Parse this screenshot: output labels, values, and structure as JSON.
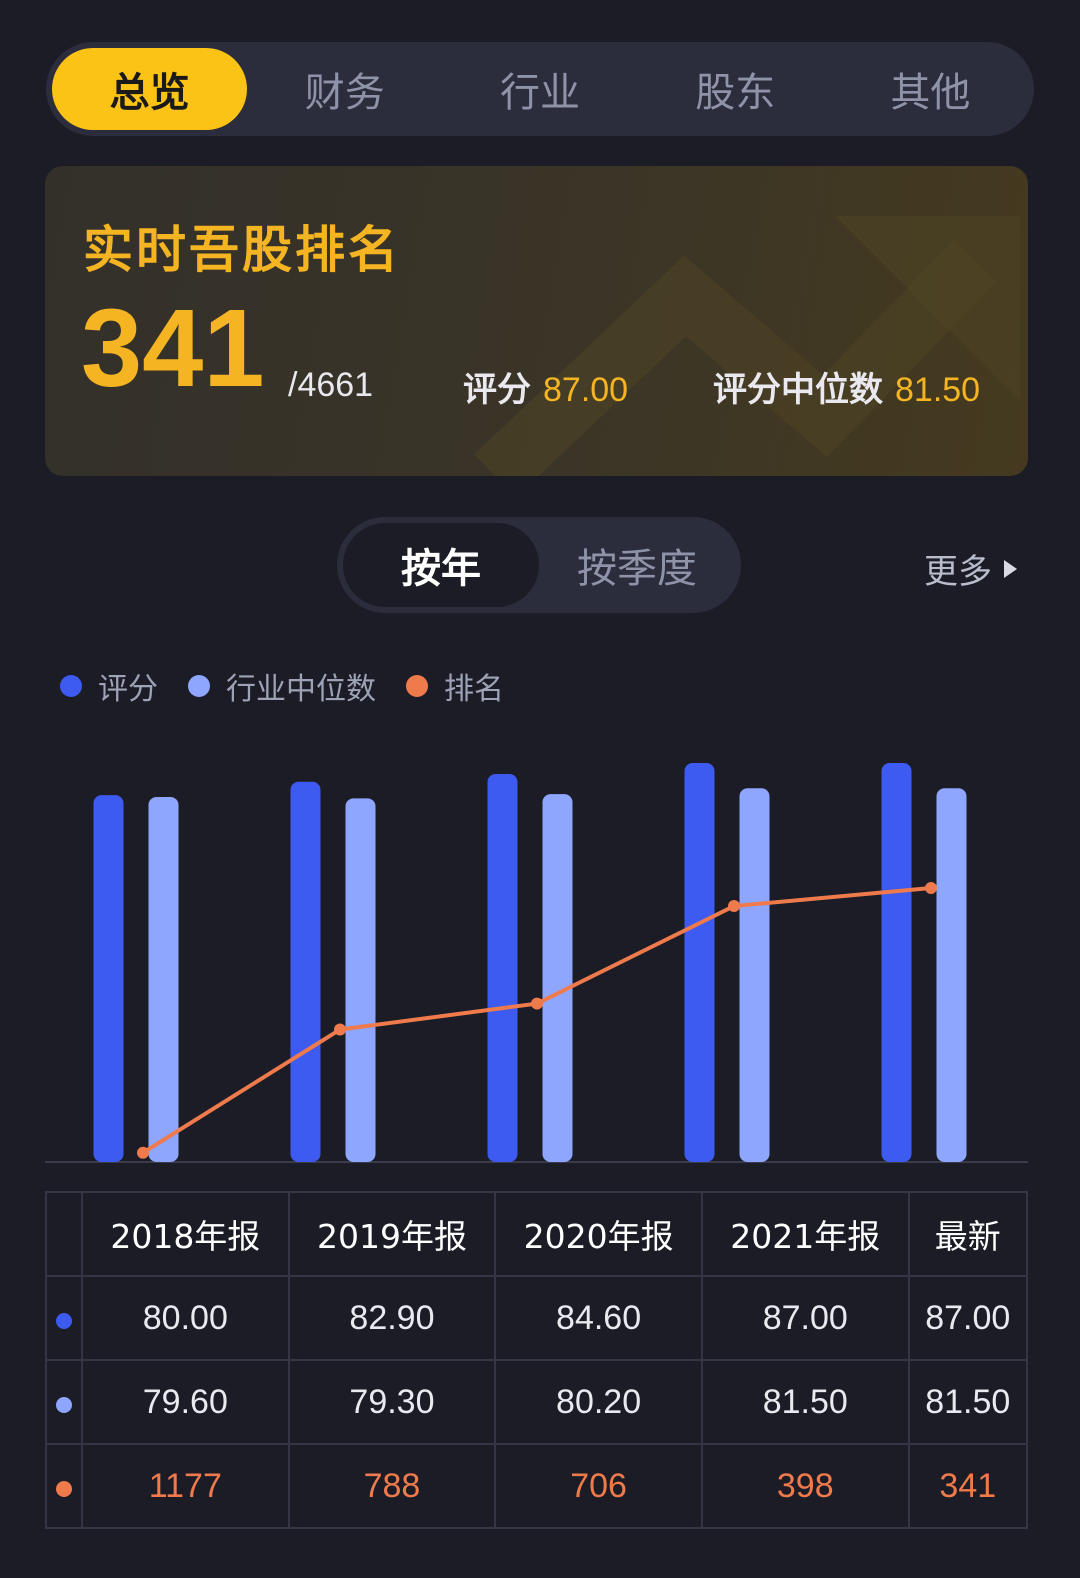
{
  "tabs": [
    {
      "label": "总览",
      "active": true
    },
    {
      "label": "财务",
      "active": false
    },
    {
      "label": "行业",
      "active": false
    },
    {
      "label": "股东",
      "active": false
    },
    {
      "label": "其他",
      "active": false
    }
  ],
  "rank_card": {
    "title": "实时吾股排名",
    "rank": "341",
    "total": "/4661",
    "score_label": "评分",
    "score_value": "87.00",
    "median_label": "评分中位数",
    "median_value": "81.50"
  },
  "period": {
    "options": [
      {
        "label": "按年",
        "active": true
      },
      {
        "label": "按季度",
        "active": false
      }
    ],
    "more_label": "更多"
  },
  "legend": [
    {
      "label": "评分",
      "color": "#3d5af1"
    },
    {
      "label": "行业中位数",
      "color": "#8fa6ff"
    },
    {
      "label": "排名",
      "color": "#ef7a4c"
    }
  ],
  "colors": {
    "accent": "#fbc315",
    "score": "#3d5af1",
    "median": "#8fa6ff",
    "rank": "#ef7a4c"
  },
  "chart_data": {
    "type": "bar",
    "categories": [
      "2018年报",
      "2019年报",
      "2020年报",
      "2021年报",
      "最新"
    ],
    "series": [
      {
        "name": "评分",
        "kind": "bar",
        "color": "#3d5af1",
        "values": [
          80.0,
          82.9,
          84.6,
          87.0,
          87.0
        ]
      },
      {
        "name": "行业中位数",
        "kind": "bar",
        "color": "#8fa6ff",
        "values": [
          79.6,
          79.3,
          80.2,
          81.5,
          81.5
        ]
      },
      {
        "name": "排名",
        "kind": "line",
        "color": "#ef7a4c",
        "values": [
          1177,
          788,
          706,
          398,
          341
        ]
      }
    ],
    "legend_position": "top-left",
    "grid": false
  },
  "table": {
    "headers": [
      "2018年报",
      "2019年报",
      "2020年报",
      "2021年报",
      "最新"
    ],
    "rows": [
      {
        "values": [
          "80.00",
          "82.90",
          "84.60",
          "87.00",
          "87.00"
        ]
      },
      {
        "values": [
          "79.60",
          "79.30",
          "80.20",
          "81.50",
          "81.50"
        ]
      },
      {
        "values": [
          "1177",
          "788",
          "706",
          "398",
          "341"
        ]
      }
    ]
  }
}
